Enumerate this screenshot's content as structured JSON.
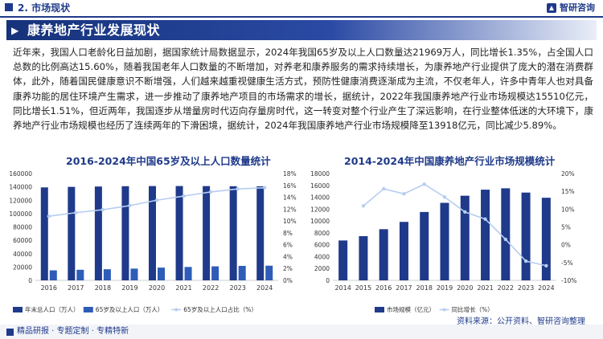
{
  "header": {
    "section_label": "2. 市场现状",
    "brand": "智研咨询"
  },
  "title": "康养地产行业发展现状",
  "body_text": "近年来，我国人口老龄化日益加剧，据国家统计局数据显示，2024年我国65岁及以上人口数量达21969万人，同比增长1.35%，占全国人口总数的比例高达15.60%，随着我国老年人口数量的不断增加，对养老和康养服务的需求持续增长，为康养地产行业提供了庞大的潜在消费群体，此外，随着国民健康意识不断增强，人们越来越重视健康生活方式，预防性健康消费逐渐成为主流，不仅老年人，许多中青年人也对具备康养功能的居住环境产生需求，进一步推动了康养地产项目的市场需求的增长，据统计，2022年我国康养地产行业市场规模达15510亿元，同比增长1.51%，但近两年，我国逐步从增量房时代迈向存量房时代，这一转变对整个行业产生了深远影响，在行业整体低迷的大环境下，康养地产行业市场规模也经历了连续两年的下滑困境，据统计，2024年我国康养地产行业市场规模降至13918亿元，同比减少5.89%。",
  "footer": {
    "left": "精品研报 · 专题定制 · 专精特新",
    "source": "资料来源：公开资料、智研咨询整理"
  },
  "colors": {
    "navy": "#1f3a8a",
    "bar_dark": "#1f3a8a",
    "bar_mid": "#2e5cb8",
    "line_light": "#b7cdf0"
  },
  "chart_data": [
    {
      "type": "bar",
      "title": "2016-2024年中国65岁及以上人口数量统计",
      "categories": [
        "2016",
        "2017",
        "2018",
        "2019",
        "2020",
        "2021",
        "2022",
        "2023",
        "2024"
      ],
      "series": [
        {
          "name": "年末总人口（万人）",
          "kind": "bar",
          "axis": "left",
          "color": "#1f3a8a",
          "values": [
            139232,
            140011,
            140541,
            141008,
            141212,
            141260,
            141175,
            140967,
            140828
          ]
        },
        {
          "name": "65岁及以上人口（万人）",
          "kind": "bar",
          "axis": "left",
          "color": "#2e5cb8",
          "values": [
            15003,
            15831,
            16658,
            17603,
            19064,
            20056,
            20978,
            21676,
            21969
          ]
        },
        {
          "name": "65岁及以上人口占比（%）",
          "kind": "line",
          "axis": "right",
          "color": "#b7cdf0",
          "values": [
            10.8,
            11.4,
            11.9,
            12.6,
            13.5,
            14.2,
            14.9,
            15.4,
            15.6
          ]
        }
      ],
      "y_left": {
        "min": 0,
        "max": 160000,
        "ticks": [
          "0",
          "20000",
          "40000",
          "60000",
          "80000",
          "100000",
          "120000",
          "140000",
          "160000"
        ]
      },
      "y_right": {
        "min": 0,
        "max": 18,
        "ticks": [
          "0%",
          "2%",
          "4%",
          "6%",
          "8%",
          "10%",
          "12%",
          "14%",
          "16%",
          "18%"
        ]
      },
      "grid": false,
      "legend": "bottom"
    },
    {
      "type": "bar",
      "title": "2014-2024年中国康养地产行业市场规模统计",
      "categories": [
        "2014",
        "2015",
        "2016",
        "2017",
        "2018",
        "2019",
        "2020",
        "2021",
        "2022",
        "2023",
        "2024"
      ],
      "series": [
        {
          "name": "市场规模（亿元）",
          "kind": "bar",
          "axis": "left",
          "color": "#1f3a8a",
          "values": [
            6720,
            7450,
            8620,
            9850,
            11520,
            13060,
            14260,
            15280,
            15510,
            14790,
            13918
          ]
        },
        {
          "name": "同比增长（%）",
          "kind": "line",
          "axis": "right",
          "color": "#b7cdf0",
          "values": [
            null,
            10.9,
            15.7,
            14.3,
            17.0,
            13.4,
            9.2,
            7.2,
            1.51,
            -4.6,
            -5.89
          ]
        }
      ],
      "y_left": {
        "min": 0,
        "max": 18000,
        "ticks": [
          "0",
          "2000",
          "4000",
          "6000",
          "8000",
          "10000",
          "12000",
          "14000",
          "16000",
          "18000"
        ]
      },
      "y_right": {
        "min": -10,
        "max": 20,
        "ticks": [
          "-10%",
          "-5%",
          "0%",
          "5%",
          "10%",
          "15%",
          "20%"
        ]
      },
      "grid": false,
      "legend": "bottom"
    }
  ]
}
